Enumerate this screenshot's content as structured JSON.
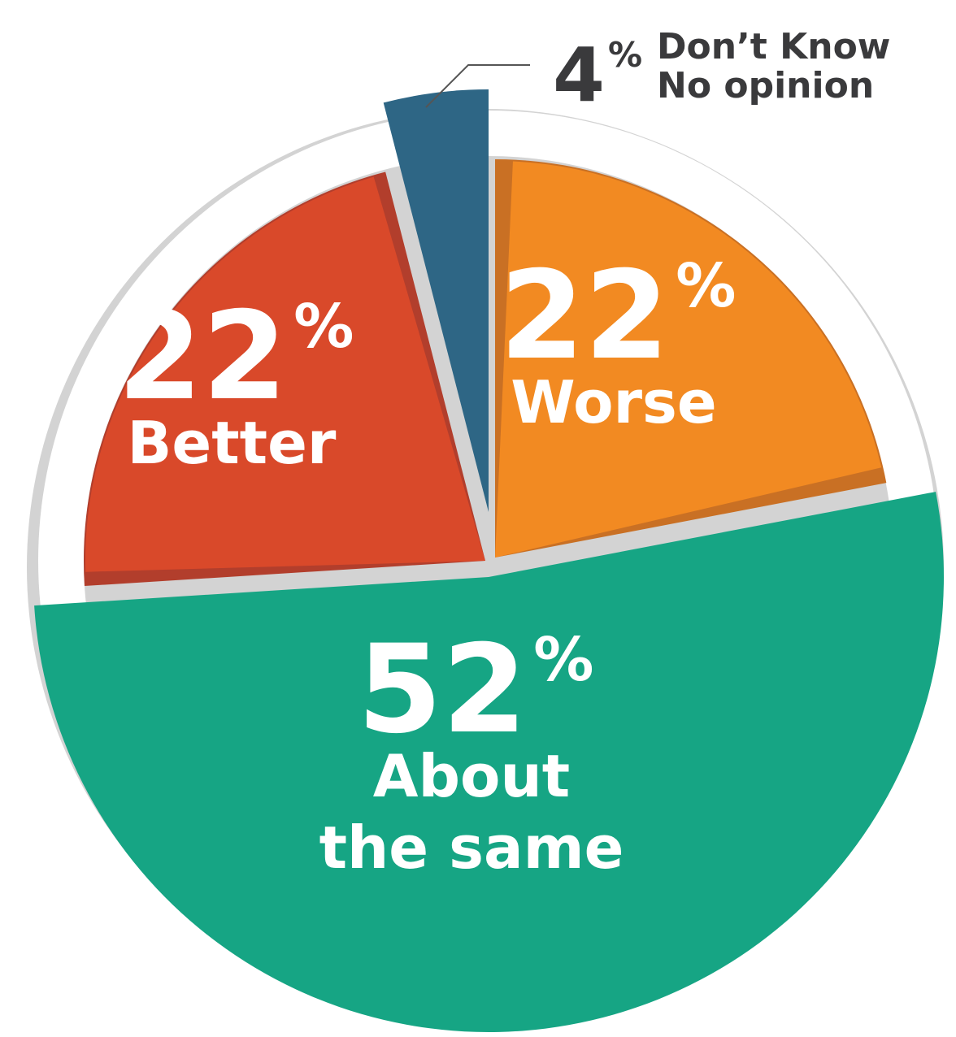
{
  "chart_data": {
    "type": "pie",
    "unit": "%",
    "slices": [
      {
        "value": 22,
        "label_lines": [
          "Worse"
        ],
        "color": "#f28a22",
        "shade": "#c97024"
      },
      {
        "value": 52,
        "label_lines": [
          "About",
          "the same"
        ],
        "color": "#16a584",
        "shade": "#16a584"
      },
      {
        "value": 22,
        "label_lines": [
          "Better"
        ],
        "color": "#d9492a",
        "shade": "#b23e2c"
      },
      {
        "value": 4,
        "label_lines": [
          "Don’t Know",
          "No opinion"
        ],
        "color": "#2e6685",
        "shade": "#2e6685"
      }
    ],
    "ring_color": "#d3d3d3",
    "callout_color": "#555555"
  }
}
